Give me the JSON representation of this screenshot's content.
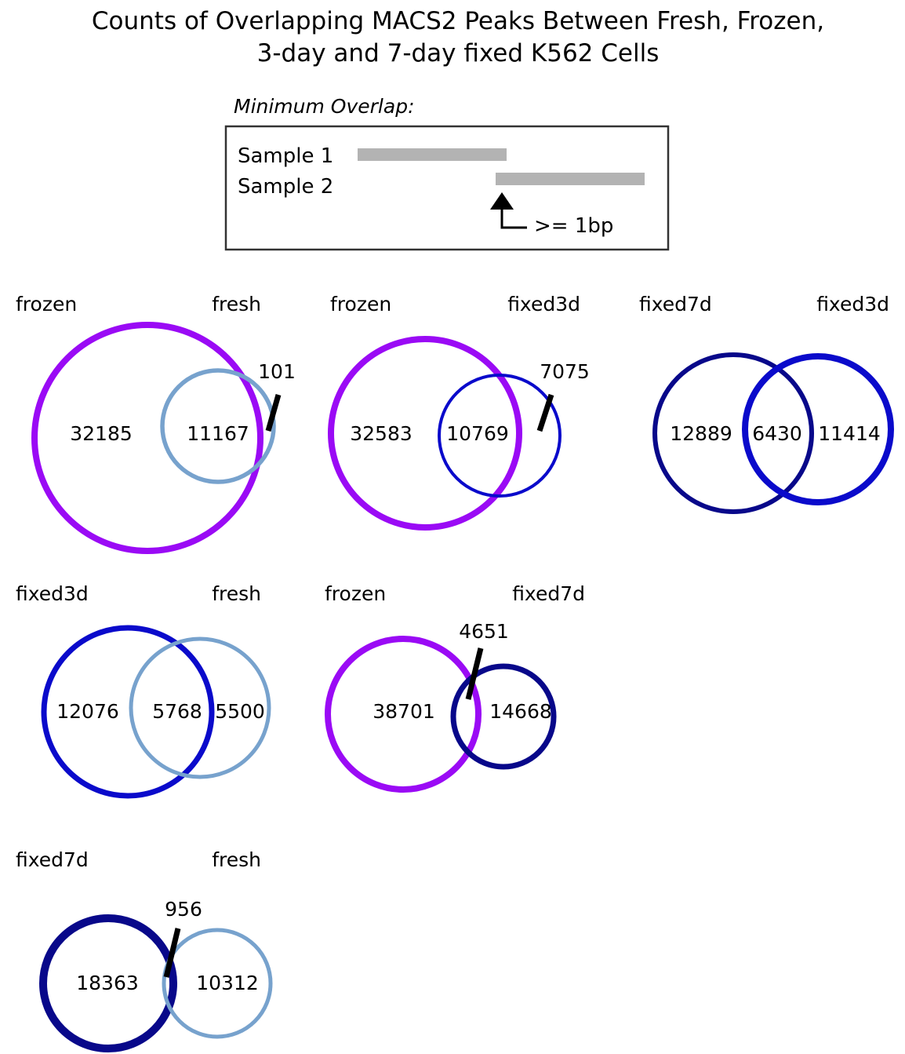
{
  "title": {
    "line1": "Counts of Overlapping MACS2 Peaks Between Fresh, Frozen,",
    "line2": "3-day and 7-day fixed K562 Cells"
  },
  "legend": {
    "caption": "Minimum Overlap:",
    "sample1": "Sample 1",
    "sample2": "Sample 2",
    "threshold": ">= 1bp",
    "bar_color": "#b3b3b3"
  },
  "colors": {
    "frozen": "#9a0af5",
    "fresh": "#77a2cd",
    "fixed3d": "#0a0acb",
    "fixed7d": "#08088a"
  },
  "venns": [
    {
      "left_set": "frozen",
      "right_set": "fresh",
      "left_only": "32185",
      "both": "11167",
      "right_only": "101"
    },
    {
      "left_set": "frozen",
      "right_set": "fixed3d",
      "left_only": "32583",
      "both": "10769",
      "right_only": "7075"
    },
    {
      "left_set": "fixed7d",
      "right_set": "fixed3d",
      "left_only": "12889",
      "both": "6430",
      "right_only": "11414"
    },
    {
      "left_set": "fixed3d",
      "right_set": "fresh",
      "left_only": "12076",
      "both": "5768",
      "right_only": "5500"
    },
    {
      "left_set": "frozen",
      "right_set": "fixed7d",
      "left_only": "38701",
      "both": "4651",
      "right_only": "14668"
    },
    {
      "left_set": "fixed7d",
      "right_set": "fresh",
      "left_only": "18363",
      "both": "956",
      "right_only": "10312"
    }
  ]
}
